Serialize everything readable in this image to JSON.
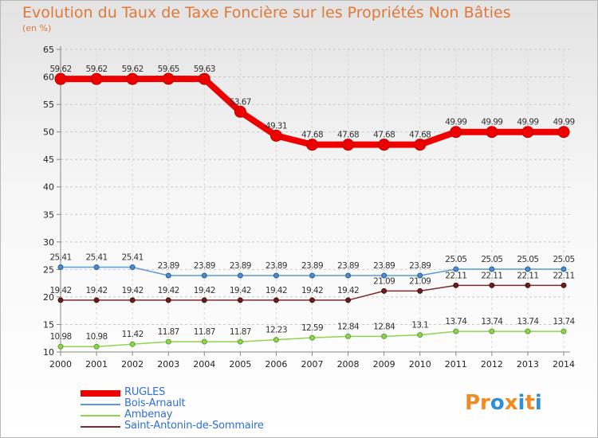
{
  "title": "Evolution du Taux de Taxe Foncière sur les Propriétés Non Bâties",
  "subtitle": "(en %)",
  "logo": {
    "text": "Proxiti",
    "parts": [
      "Pr",
      "o",
      "x",
      "i",
      "t",
      "i"
    ],
    "colors": [
      "#f08a24",
      "#2f8fd8",
      "#f08a24",
      "#2f8fd8",
      "#f08a24",
      "#2f8fd8"
    ]
  },
  "chart_data": {
    "type": "line",
    "title": "Evolution du Taux de Taxe Foncière sur les Propriétés Non Bâties",
    "ylabel": "(en %)",
    "xlabel": "",
    "x": [
      "2000",
      "2001",
      "2002",
      "2003",
      "2004",
      "2005",
      "2006",
      "2007",
      "2008",
      "2009",
      "2010",
      "2011",
      "2012",
      "2013",
      "2014"
    ],
    "ylim": [
      10,
      65
    ],
    "yticks": [
      10,
      15,
      20,
      25,
      30,
      35,
      40,
      45,
      50,
      55,
      60,
      65
    ],
    "grid": "horizontal dashed",
    "legend_position": "bottom-left",
    "series": [
      {
        "name": "RUGLES",
        "color": "#ee0000",
        "values": [
          59.62,
          59.62,
          59.62,
          59.65,
          59.63,
          53.67,
          49.31,
          47.68,
          47.68,
          47.68,
          47.68,
          49.99,
          49.99,
          49.99,
          49.99
        ],
        "labels": [
          "59.62",
          "59.62",
          "59.62",
          "59.65",
          "59.63",
          "53.67",
          "49.31",
          "47.68",
          "47.68",
          "47.68",
          "47.68",
          "49.99",
          "49.99",
          "49.99",
          "49.99"
        ]
      },
      {
        "name": "Bois-Arnault",
        "color": "#5b9bd5",
        "values": [
          25.41,
          25.41,
          25.41,
          23.89,
          23.89,
          23.89,
          23.89,
          23.89,
          23.89,
          23.89,
          23.89,
          25.05,
          25.05,
          25.05,
          25.05
        ],
        "labels": [
          "25.41",
          "25.41",
          "25.41",
          "23.89",
          "23.89",
          "23.89",
          "23.89",
          "23.89",
          "23.89",
          "23.89",
          "23.89",
          "25.05",
          "25.05",
          "25.05",
          "25.05"
        ]
      },
      {
        "name": "Ambenay",
        "color": "#8fd44f",
        "values": [
          10.98,
          10.98,
          11.42,
          11.87,
          11.87,
          11.87,
          12.23,
          12.59,
          12.84,
          12.84,
          13.1,
          13.74,
          13.74,
          13.74,
          13.74
        ],
        "labels": [
          "10.98",
          "10.98",
          "11.42",
          "11.87",
          "11.87",
          "11.87",
          "12.23",
          "12.59",
          "12.84",
          "12.84",
          "13.1",
          "13.74",
          "13.74",
          "13.74",
          "13.74"
        ]
      },
      {
        "name": "Saint-Antonin-de-Sommaire",
        "color": "#7a2a2a",
        "values": [
          19.42,
          19.42,
          19.42,
          19.42,
          19.42,
          19.42,
          19.42,
          19.42,
          19.42,
          21.09,
          21.09,
          22.11,
          22.11,
          22.11,
          22.11
        ],
        "labels": [
          "19.42",
          "19.42",
          "19.42",
          "19.42",
          "19.42",
          "19.42",
          "19.42",
          "19.42",
          "19.42",
          "21.09",
          "21.09",
          "22.11",
          "22.11",
          "22.11",
          "22.11"
        ]
      }
    ]
  }
}
